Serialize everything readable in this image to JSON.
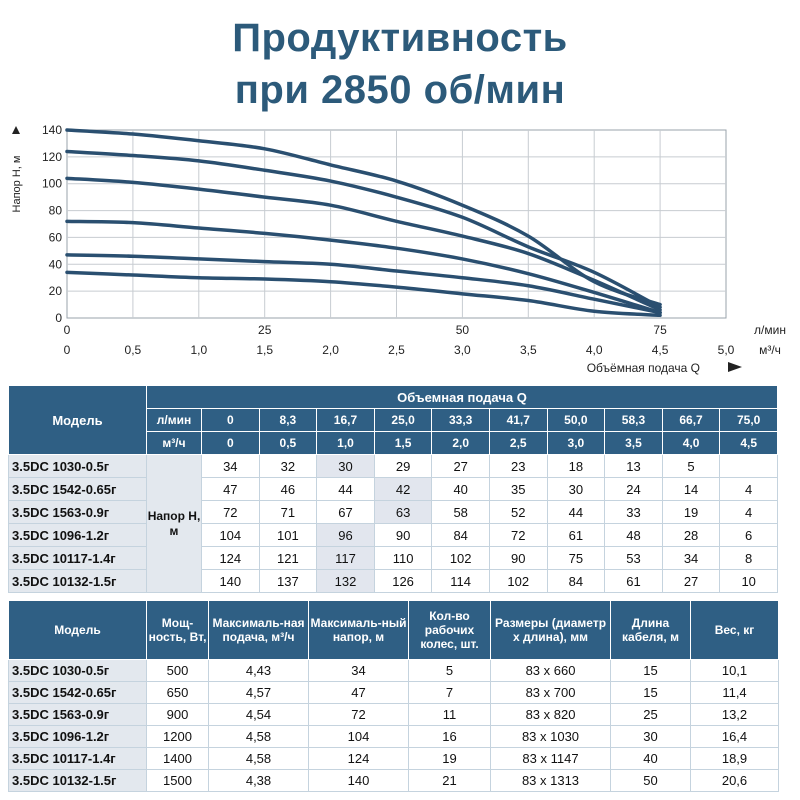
{
  "title": {
    "line1": "Продуктивность",
    "line2": "при 2850 об/мин"
  },
  "chart_data": {
    "type": "line",
    "ylabel": "Напор H, м",
    "xlabel": "Объёмная подача Q",
    "x_unit_lpm": "л/мин",
    "x_unit_m3h": "м³/ч",
    "xlim_m3h": [
      0,
      5
    ],
    "ylim": [
      0,
      140
    ],
    "y_ticks": [
      "0",
      "20",
      "40",
      "60",
      "80",
      "100",
      "120",
      "140"
    ],
    "x_ticks_lpm": [
      "0",
      "25",
      "50",
      "75"
    ],
    "x_ticks_m3h": [
      "0",
      "0,5",
      "1,0",
      "1,5",
      "2,0",
      "2,5",
      "3,0",
      "3,5",
      "4,0",
      "4,5",
      "5,0"
    ],
    "x_m3h": [
      0,
      0.5,
      1.0,
      1.5,
      2.0,
      2.5,
      3.0,
      3.5,
      4.0,
      4.5
    ],
    "series": [
      {
        "values": [
          34,
          32,
          30,
          29,
          27,
          23,
          18,
          13,
          5,
          2
        ]
      },
      {
        "values": [
          47,
          46,
          44,
          42,
          40,
          35,
          30,
          24,
          14,
          4
        ]
      },
      {
        "values": [
          72,
          71,
          67,
          63,
          58,
          52,
          44,
          33,
          19,
          4
        ]
      },
      {
        "values": [
          104,
          101,
          96,
          90,
          84,
          72,
          61,
          48,
          28,
          6
        ]
      },
      {
        "values": [
          124,
          121,
          117,
          110,
          102,
          90,
          75,
          53,
          34,
          8
        ]
      },
      {
        "values": [
          140,
          137,
          132,
          126,
          114,
          102,
          84,
          61,
          27,
          10
        ]
      }
    ],
    "grid": true
  },
  "perf_table": {
    "model_header": "Модель",
    "flow_header": "Объемная подача Q",
    "lpm_label": "л/мин",
    "m3h_label": "м³/ч",
    "group_label": "Напор Н, м",
    "lpm": [
      "0",
      "8,3",
      "16,7",
      "25,0",
      "33,3",
      "41,7",
      "50,0",
      "58,3",
      "66,7",
      "75,0"
    ],
    "m3h": [
      "0",
      "0,5",
      "1,0",
      "1,5",
      "2,0",
      "2,5",
      "3,0",
      "3,5",
      "4,0",
      "4,5"
    ],
    "rows": [
      {
        "model": "3.5DC 1030-0.5г",
        "values": [
          "34",
          "32",
          "30",
          "29",
          "27",
          "23",
          "18",
          "13",
          "5",
          ""
        ]
      },
      {
        "model": "3.5DC 1542-0.65г",
        "values": [
          "47",
          "46",
          "44",
          "42",
          "40",
          "35",
          "30",
          "24",
          "14",
          "4"
        ]
      },
      {
        "model": "3.5DC 1563-0.9г",
        "values": [
          "72",
          "71",
          "67",
          "63",
          "58",
          "52",
          "44",
          "33",
          "19",
          "4"
        ]
      },
      {
        "model": "3.5DC 1096-1.2г",
        "values": [
          "104",
          "101",
          "96",
          "90",
          "84",
          "72",
          "61",
          "48",
          "28",
          "6"
        ]
      },
      {
        "model": "3.5DC 10117-1.4г",
        "values": [
          "124",
          "121",
          "117",
          "110",
          "102",
          "90",
          "75",
          "53",
          "34",
          "8"
        ]
      },
      {
        "model": "3.5DC 10132-1.5г",
        "values": [
          "140",
          "137",
          "132",
          "126",
          "114",
          "102",
          "84",
          "61",
          "27",
          "10"
        ]
      }
    ]
  },
  "spec_table": {
    "headers": [
      "Модель",
      "Мощ-ность, Вт,",
      "Максималь-ная подача, м³/ч",
      "Максималь-ный напор, м",
      "Кол-во рабочих колес, шт.",
      "Размеры (диаметр х длина), мм",
      "Длина кабеля, м",
      "Вес, кг"
    ],
    "rows": [
      [
        "3.5DC 1030-0.5г",
        "500",
        "4,43",
        "34",
        "5",
        "83 х 660",
        "15",
        "10,1"
      ],
      [
        "3.5DC 1542-0.65г",
        "650",
        "4,57",
        "47",
        "7",
        "83 х 700",
        "15",
        "11,4"
      ],
      [
        "3.5DC 1563-0.9г",
        "900",
        "4,54",
        "72",
        "11",
        "83 х 820",
        "25",
        "13,2"
      ],
      [
        "3.5DC 1096-1.2г",
        "1200",
        "4,58",
        "104",
        "16",
        "83 х 1030",
        "30",
        "16,4"
      ],
      [
        "3.5DC 10117-1.4г",
        "1400",
        "4,58",
        "124",
        "19",
        "83 х 1147",
        "40",
        "18,9"
      ],
      [
        "3.5DC 10132-1.5г",
        "1500",
        "4,38",
        "140",
        "21",
        "83 х 1313",
        "50",
        "20,6"
      ]
    ]
  },
  "colors": {
    "brand": "#2c5a7a",
    "header_bg": "#2f5f84",
    "curve": "#2a4f70",
    "model_bg": "#e3e8ee"
  }
}
